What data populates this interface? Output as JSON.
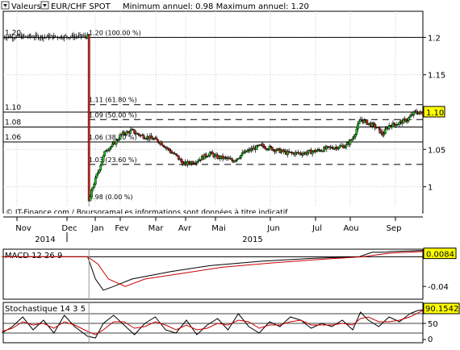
{
  "header": {
    "menu_label": "Valeurs",
    "symbol": "EUR/CHF SPOT",
    "range_text": "Minimum annuel: 0.98 Maximum annuel: 1.20"
  },
  "chart_data": [
    {
      "type": "candlestick",
      "title": "EUR/CHF SPOT",
      "ylim": [
        0.965,
        1.235
      ],
      "y_ticks": [
        "1.2",
        "1.15",
        "1.1",
        "1.05",
        "1"
      ],
      "y_tick_values": [
        1.2,
        1.15,
        1.1,
        1.05,
        1.0
      ],
      "x_month_labels": [
        "Nov",
        "Dec",
        "Jan",
        "Fev",
        "Mar",
        "Avr",
        "Mai",
        "Jun",
        "Jul",
        "Aou",
        "Sep"
      ],
      "x_year_labels": [
        "2014",
        "2015"
      ],
      "current_value": "1.10",
      "footer_note": "© IT-Finance.com / BoursoramaLes informations sont données à titre indicatif",
      "horizontal_levels": [
        {
          "label": "1.20",
          "value": 1.2
        },
        {
          "label": "1.10",
          "value": 1.1
        },
        {
          "label": "1.08",
          "value": 1.08
        },
        {
          "label": "1.06",
          "value": 1.06
        }
      ],
      "fibonacci_levels": [
        {
          "label": "1.20 (100.00 %)",
          "value": 1.2
        },
        {
          "label": "1.11 (61.80 %)",
          "value": 1.11
        },
        {
          "label": "1.09 (50.00 %)",
          "value": 1.09
        },
        {
          "label": "1.06 (38.20 %)",
          "value": 1.06
        },
        {
          "label": "1.03 (23.60 %)",
          "value": 1.03
        },
        {
          "label": "0.98 (0.00 %)",
          "value": 0.98
        }
      ],
      "close_path": [
        [
          0,
          1.201
        ],
        [
          40,
          1.201
        ],
        [
          63,
          1.2015
        ],
        [
          66,
          1.2012
        ],
        [
          67,
          0.98
        ],
        [
          70,
          1.0
        ],
        [
          76,
          1.03
        ],
        [
          80,
          1.05
        ],
        [
          85,
          1.055
        ],
        [
          92,
          1.07
        ],
        [
          100,
          1.075
        ],
        [
          105,
          1.07
        ],
        [
          115,
          1.065
        ],
        [
          122,
          1.06
        ],
        [
          128,
          1.05
        ],
        [
          135,
          1.04
        ],
        [
          140,
          1.03
        ],
        [
          150,
          1.035
        ],
        [
          160,
          1.045
        ],
        [
          165,
          1.04
        ],
        [
          172,
          1.038
        ],
        [
          178,
          1.035
        ],
        [
          186,
          1.045
        ],
        [
          192,
          1.05
        ],
        [
          200,
          1.055
        ],
        [
          210,
          1.05
        ],
        [
          220,
          1.045
        ],
        [
          232,
          1.045
        ],
        [
          242,
          1.048
        ],
        [
          252,
          1.052
        ],
        [
          265,
          1.055
        ],
        [
          270,
          1.065
        ],
        [
          276,
          1.09
        ],
        [
          282,
          1.085
        ],
        [
          288,
          1.08
        ],
        [
          293,
          1.07
        ],
        [
          298,
          1.082
        ],
        [
          305,
          1.085
        ],
        [
          312,
          1.09
        ],
        [
          318,
          1.1
        ],
        [
          324,
          1.098
        ]
      ]
    },
    {
      "type": "line",
      "title": "MACD 12 26 9",
      "current_value": "0.0084",
      "y_ticks": [
        "-0.04"
      ],
      "ylim": [
        -0.055,
        0.008
      ],
      "series": [
        {
          "values": [
            [
              0,
              0.0
            ],
            [
              66,
              0.0
            ],
            [
              72,
              -0.03
            ],
            [
              78,
              -0.045
            ],
            [
              86,
              -0.04
            ],
            [
              100,
              -0.03
            ],
            [
              130,
              -0.02
            ],
            [
              160,
              -0.012
            ],
            [
              200,
              -0.006
            ],
            [
              240,
              -0.002
            ],
            [
              275,
              0.0
            ],
            [
              285,
              0.006
            ],
            [
              295,
              0.006
            ],
            [
              300,
              0.007
            ],
            [
              324,
              0.0084
            ]
          ]
        },
        {
          "values": [
            [
              0,
              0.0
            ],
            [
              66,
              0.0
            ],
            [
              74,
              -0.01
            ],
            [
              82,
              -0.03
            ],
            [
              95,
              -0.04
            ],
            [
              110,
              -0.03
            ],
            [
              140,
              -0.022
            ],
            [
              170,
              -0.014
            ],
            [
              210,
              -0.008
            ],
            [
              250,
              -0.003
            ],
            [
              278,
              0.0
            ],
            [
              290,
              0.003
            ],
            [
              300,
              0.005
            ],
            [
              324,
              0.007
            ]
          ]
        }
      ]
    },
    {
      "type": "line",
      "title": "Stochastique 14 3 5",
      "current_value": "90.1542",
      "y_ticks": [
        "50",
        "0"
      ],
      "ylim": [
        -5,
        110
      ],
      "series": [
        {
          "values": [
            [
              0,
              20
            ],
            [
              8,
              40
            ],
            [
              16,
              70
            ],
            [
              24,
              30
            ],
            [
              32,
              60
            ],
            [
              40,
              20
            ],
            [
              48,
              75
            ],
            [
              56,
              40
            ],
            [
              66,
              10
            ],
            [
              72,
              5
            ],
            [
              78,
              50
            ],
            [
              86,
              75
            ],
            [
              94,
              45
            ],
            [
              102,
              15
            ],
            [
              110,
              50
            ],
            [
              118,
              70
            ],
            [
              126,
              30
            ],
            [
              134,
              20
            ],
            [
              142,
              60
            ],
            [
              150,
              15
            ],
            [
              158,
              45
            ],
            [
              166,
              65
            ],
            [
              174,
              30
            ],
            [
              182,
              80
            ],
            [
              190,
              40
            ],
            [
              198,
              20
            ],
            [
              206,
              55
            ],
            [
              214,
              40
            ],
            [
              222,
              70
            ],
            [
              230,
              60
            ],
            [
              238,
              35
            ],
            [
              246,
              50
            ],
            [
              254,
              40
            ],
            [
              262,
              60
            ],
            [
              270,
              30
            ],
            [
              276,
              85
            ],
            [
              282,
              60
            ],
            [
              290,
              40
            ],
            [
              298,
              70
            ],
            [
              306,
              55
            ],
            [
              314,
              80
            ],
            [
              320,
              90
            ],
            [
              324,
              92
            ]
          ]
        },
        {
          "values": [
            [
              0,
              25
            ],
            [
              8,
              35
            ],
            [
              16,
              55
            ],
            [
              24,
              45
            ],
            [
              32,
              50
            ],
            [
              40,
              35
            ],
            [
              48,
              55
            ],
            [
              56,
              45
            ],
            [
              66,
              25
            ],
            [
              72,
              15
            ],
            [
              78,
              30
            ],
            [
              86,
              55
            ],
            [
              94,
              55
            ],
            [
              102,
              35
            ],
            [
              110,
              40
            ],
            [
              118,
              55
            ],
            [
              126,
              45
            ],
            [
              134,
              30
            ],
            [
              142,
              45
            ],
            [
              150,
              30
            ],
            [
              158,
              35
            ],
            [
              166,
              50
            ],
            [
              174,
              45
            ],
            [
              182,
              60
            ],
            [
              190,
              55
            ],
            [
              198,
              35
            ],
            [
              206,
              45
            ],
            [
              214,
              45
            ],
            [
              222,
              55
            ],
            [
              230,
              60
            ],
            [
              238,
              45
            ],
            [
              246,
              45
            ],
            [
              254,
              45
            ],
            [
              262,
              50
            ],
            [
              270,
              45
            ],
            [
              276,
              65
            ],
            [
              282,
              70
            ],
            [
              290,
              55
            ],
            [
              298,
              55
            ],
            [
              306,
              60
            ],
            [
              314,
              70
            ],
            [
              320,
              82
            ],
            [
              324,
              90
            ]
          ]
        }
      ]
    }
  ],
  "colors": {
    "up_candle": "#22bb22",
    "down_candle": "#cc2222",
    "signal_line": "#cc0000",
    "value_box": "#ffff00",
    "grid": "#cccccc"
  }
}
